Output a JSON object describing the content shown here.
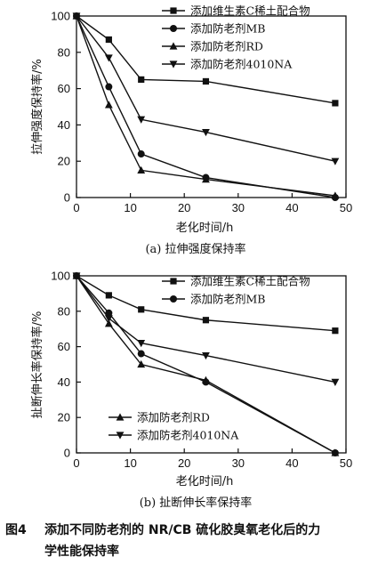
{
  "chart_data": [
    {
      "type": "line",
      "panel_label": "(a) 拉伸强度保持率",
      "ylabel": "拉伸强度保持率/%",
      "xlabel": "老化时间/h",
      "xlim": [
        0,
        50
      ],
      "ylim": [
        0,
        100
      ],
      "xticks": [
        "0",
        "10",
        "20",
        "30",
        "40",
        "50"
      ],
      "yticks": [
        "0",
        "20",
        "40",
        "60",
        "80",
        "100"
      ],
      "grid": false,
      "legend_position": "top-right",
      "x": [
        0,
        6,
        12,
        24,
        48
      ],
      "series": [
        {
          "name": "添加维生素C稀土配合物",
          "marker": "square",
          "values": [
            100,
            87,
            65,
            64,
            52
          ]
        },
        {
          "name": "添加防老剂MB",
          "marker": "circle",
          "values": [
            100,
            61,
            24,
            11,
            0
          ]
        },
        {
          "name": "添加防老剂RD",
          "marker": "triangle-up",
          "values": [
            100,
            51,
            15,
            10,
            1
          ]
        },
        {
          "name": "添加防老剂4010NA",
          "marker": "triangle-down",
          "values": [
            100,
            77,
            43,
            36,
            20
          ]
        }
      ]
    },
    {
      "type": "line",
      "panel_label": "(b) 扯断伸长率保持率",
      "ylabel": "扯断伸长率保持率/%",
      "xlabel": "老化时间/h",
      "xlim": [
        0,
        50
      ],
      "ylim": [
        0,
        100
      ],
      "xticks": [
        "0",
        "10",
        "20",
        "30",
        "40",
        "50"
      ],
      "yticks": [
        "0",
        "20",
        "40",
        "60",
        "80",
        "100"
      ],
      "grid": false,
      "legend_position": "split: top-right and bottom-left",
      "x": [
        0,
        6,
        12,
        24,
        48
      ],
      "series": [
        {
          "name": "添加维生素C稀土配合物",
          "marker": "square",
          "values": [
            100,
            89,
            81,
            75,
            69
          ]
        },
        {
          "name": "添加防老剂MB",
          "marker": "circle",
          "values": [
            100,
            79,
            56,
            40,
            0
          ]
        },
        {
          "name": "添加防老剂RD",
          "marker": "triangle-up",
          "values": [
            100,
            73,
            50,
            41,
            0
          ]
        },
        {
          "name": "添加防老剂4010NA",
          "marker": "triangle-down",
          "values": [
            100,
            76,
            62,
            55,
            40
          ]
        }
      ]
    }
  ],
  "caption": {
    "number": "图4",
    "line1": "添加不同防老剂的 NR/CB 硫化胶臭氧老化后的力",
    "line2": "学性能保持率"
  }
}
